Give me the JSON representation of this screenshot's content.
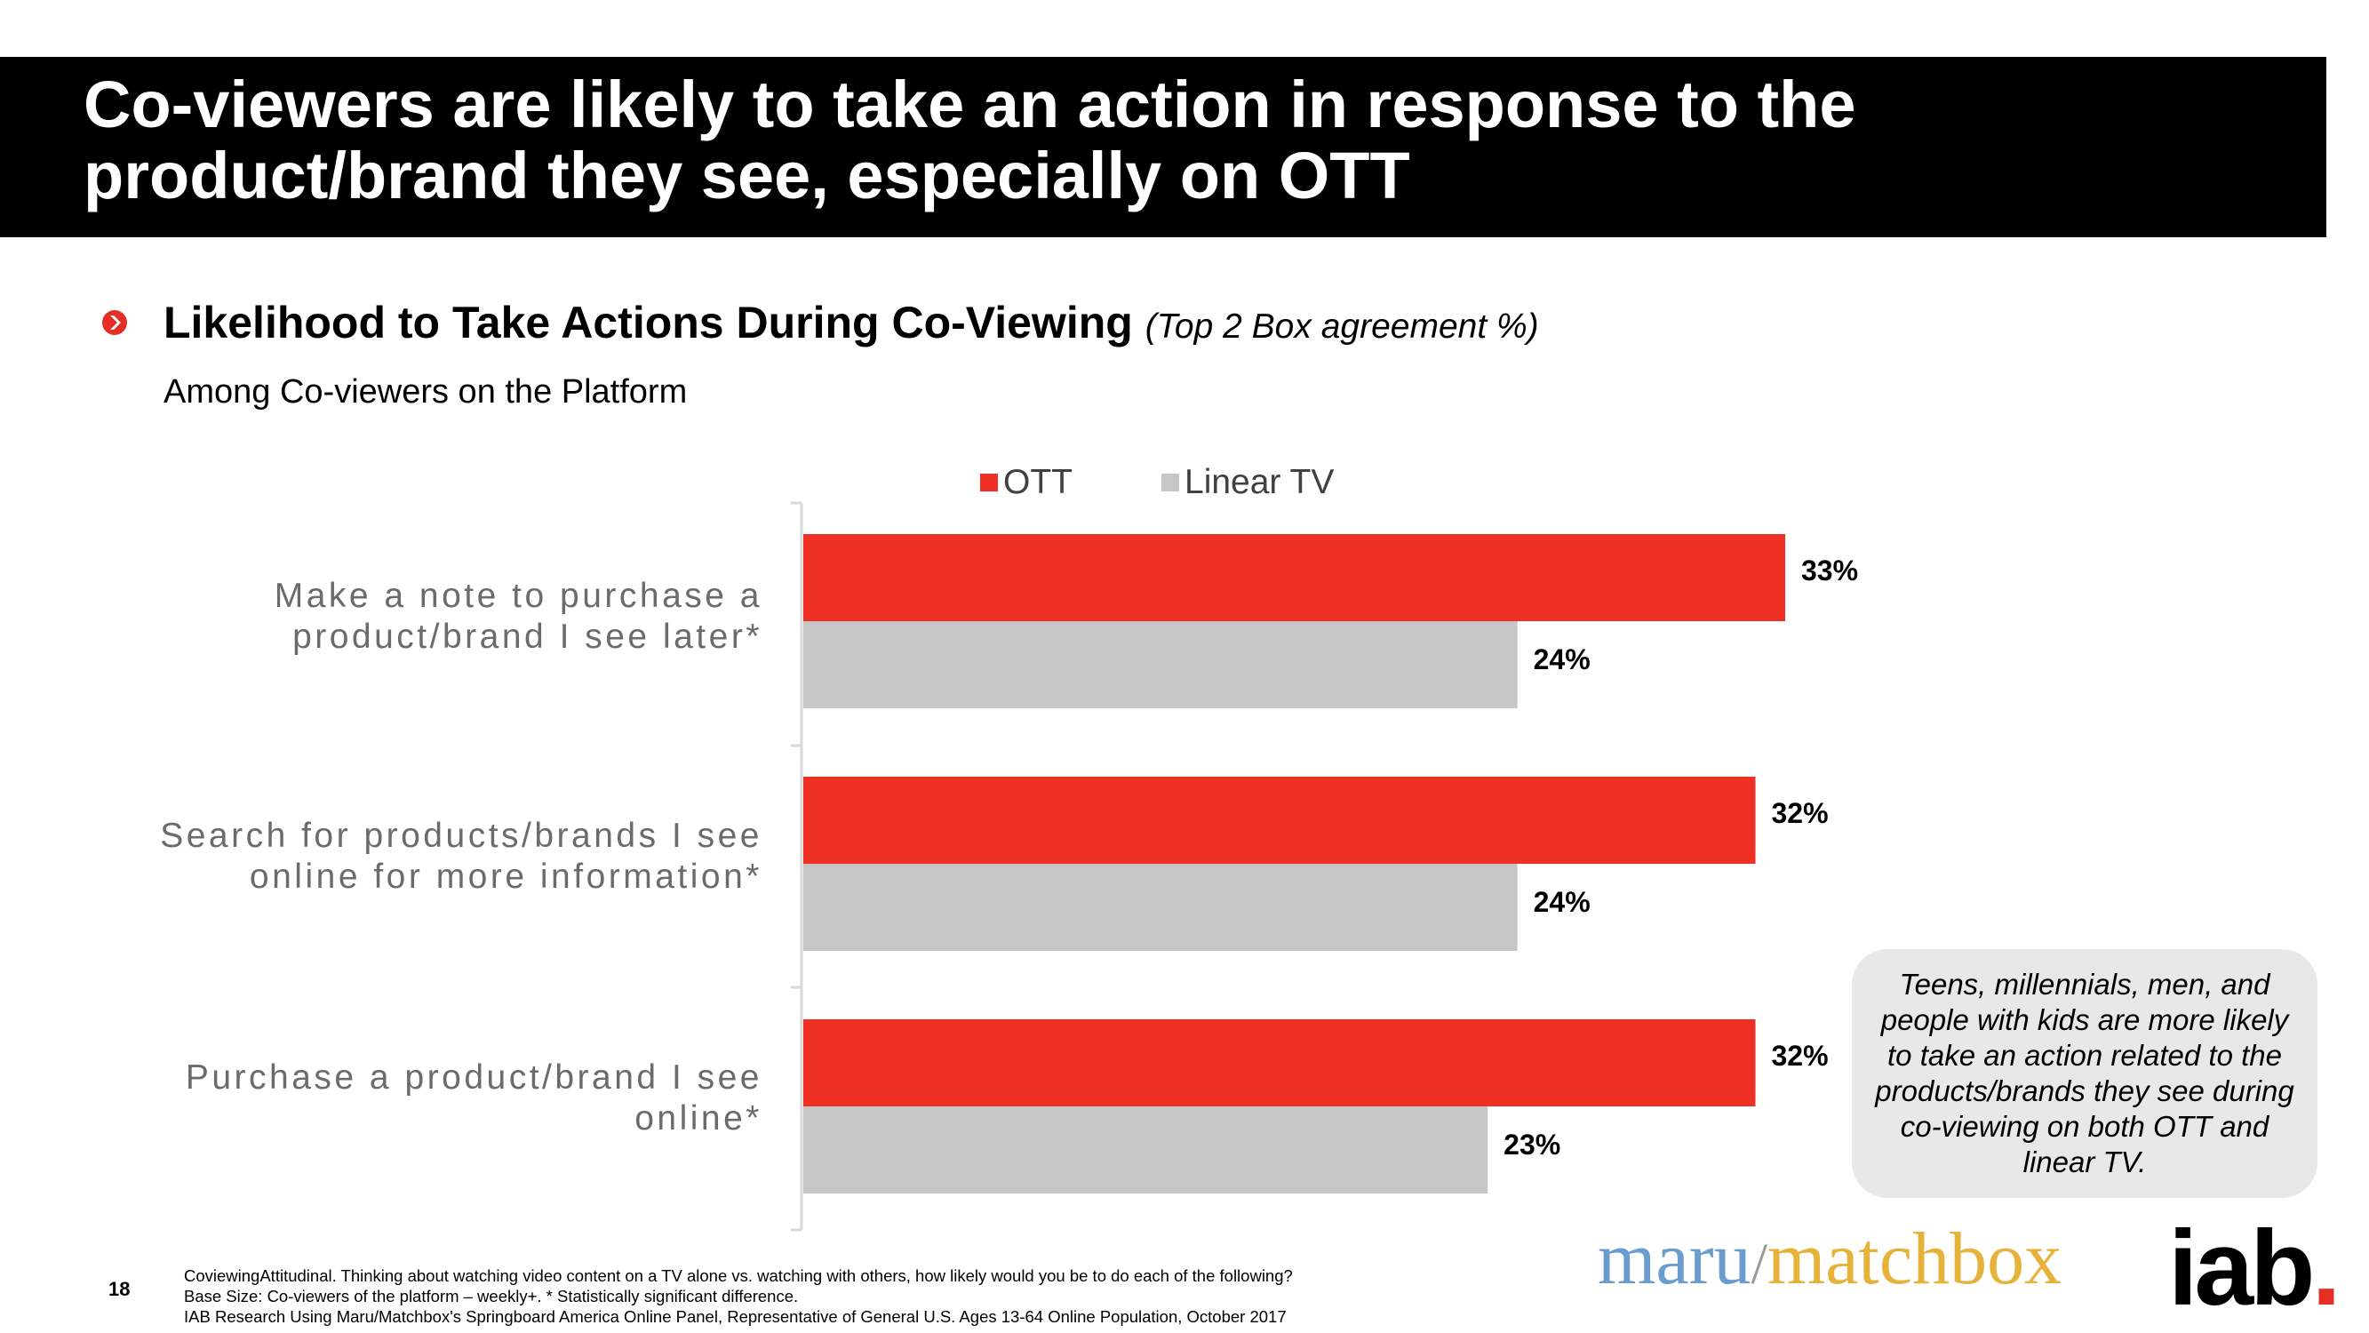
{
  "header": {
    "title": "Co-viewers are likely to take an action in response to the product/brand they see, especially on OTT"
  },
  "section": {
    "heading": "Likelihood to Take Actions During Co-Viewing",
    "heading_note": "(Top 2 Box agreement %)",
    "base": "Among Co-viewers on the Platform"
  },
  "colors": {
    "ott": "#ee3124",
    "linear": "#c6c6c6",
    "title_bg": "#000000"
  },
  "chart_data": {
    "type": "bar",
    "orientation": "horizontal",
    "categories": [
      [
        "Make a note to purchase a",
        "product/brand I see later*"
      ],
      [
        "Search for products/brands I see",
        "online for more information*"
      ],
      [
        "Purchase a product/brand I see",
        "online*"
      ]
    ],
    "series": [
      {
        "name": "OTT",
        "values": [
          33,
          32,
          32
        ],
        "labels": [
          "33%",
          "32%",
          "32%"
        ]
      },
      {
        "name": "Linear TV",
        "values": [
          24,
          24,
          23
        ],
        "labels": [
          "24%",
          "24%",
          "23%"
        ]
      }
    ],
    "legend_position": "top",
    "grid": false
  },
  "callout": {
    "text": "Teens, millennials, men, and people with kids are more likely to take an action related to the products/brands they see during co-viewing on both OTT and linear TV."
  },
  "footer": {
    "page_number": "18",
    "notes": [
      "CoviewingAttitudinal. Thinking about watching video content on a TV alone vs. watching with others, how likely would you be to do each of the following?",
      "Base Size: Co-viewers of the platform – weekly+. * Statistically significant difference.",
      "IAB Research Using Maru/Matchbox's Springboard America Online Panel, Representative of General U.S. Ages 13-64 Online Population, October 2017"
    ]
  },
  "logos": {
    "maru": "maru",
    "slash": "/",
    "matchbox": "matchbox",
    "iab": "iab",
    "iab_dot": "."
  }
}
